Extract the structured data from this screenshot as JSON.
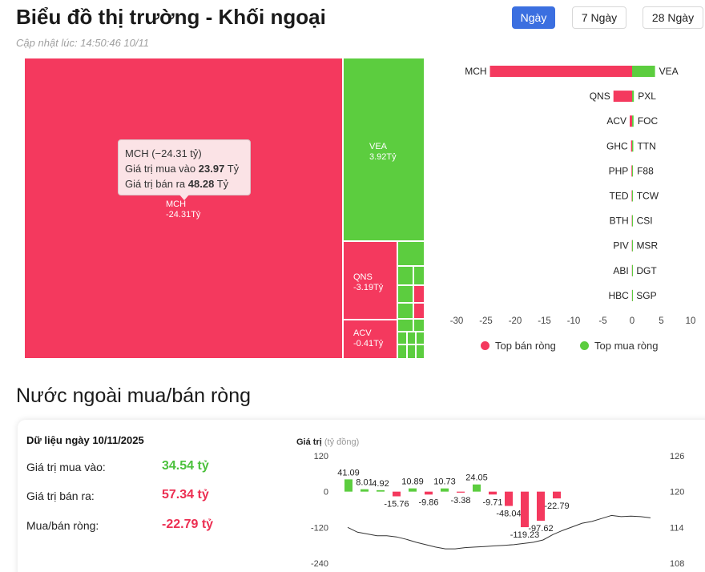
{
  "header": {
    "title": "Biểu đồ thị trường - Khối ngoại",
    "updated": "Cập nhật lúc: 14:50:46 10/11",
    "tabs": [
      {
        "label": "Ngày",
        "active": true
      },
      {
        "label": "7 Ngày",
        "active": false
      },
      {
        "label": "28 Ngày",
        "active": false
      }
    ]
  },
  "colors": {
    "sell": "#f4395e",
    "buy": "#5ccd3f",
    "accent": "#3b6fe0"
  },
  "tooltip": {
    "title": "MCH (−24.31 tỷ)",
    "buy_label": "Giá trị mua vào ",
    "buy_value": "23.97",
    "sell_label": "Giá trị bán ra ",
    "sell_value": "48.28",
    "unit": " Tỷ"
  },
  "chart_data": [
    {
      "type": "treemap",
      "tiles": [
        {
          "name": "MCH",
          "label": "-24.31Tỷ",
          "value": -24.31
        },
        {
          "name": "VEA",
          "label": "3.92Tỷ",
          "value": 3.92
        },
        {
          "name": "QNS",
          "label": "-3.19Tỷ",
          "value": -3.19
        },
        {
          "name": "ACV",
          "label": "-0.41Tỷ",
          "value": -0.41
        }
      ]
    },
    {
      "type": "bar",
      "orientation": "horizontal",
      "sell_categories": [
        "MCH",
        "QNS",
        "ACV",
        "GHC",
        "PHP",
        "TED",
        "BTH",
        "PIV",
        "ABI",
        "HBC"
      ],
      "buy_categories": [
        "VEA",
        "PXL",
        "FOC",
        "TTN",
        "F88",
        "TCW",
        "CSI",
        "MSR",
        "DGT",
        "SGP"
      ],
      "series": [
        {
          "name": "Top bán ròng",
          "values": [
            -24.31,
            -3.19,
            -0.41,
            -0.18,
            -0.1,
            -0.07,
            -0.05,
            -0.04,
            -0.03,
            -0.02
          ]
        },
        {
          "name": "Top mua ròng",
          "values": [
            3.92,
            0.3,
            0.25,
            0.2,
            0.15,
            0.1,
            0.08,
            0.06,
            0.05,
            0.04
          ]
        }
      ],
      "xlim": [
        -30,
        10
      ],
      "xticks": [
        -30,
        -25,
        -20,
        -15,
        -10,
        -5,
        0,
        5,
        10
      ],
      "legend": "bottom"
    },
    {
      "type": "bar",
      "ylabel_bold": "Giá trị",
      "ylabel_unit": "(tỷ đồng)",
      "values": [
        41.09,
        8.01,
        4.92,
        -15.76,
        10.89,
        -9.86,
        10.73,
        -3.38,
        24.05,
        -9.71,
        -48.04,
        -119.23,
        -97.62,
        -22.79
      ],
      "value_labels": [
        "41.09",
        "8.01",
        "4.92",
        "-15.76",
        "10.89",
        "-9.86",
        "10.73",
        "-3.38",
        "24.05",
        "-9.71",
        "-48.04",
        "-119.23",
        "-97.62",
        "-22.79"
      ],
      "ylim": [
        -240,
        120
      ],
      "yticks": [
        120,
        0,
        -120,
        -240
      ],
      "y2lim": [
        108,
        126
      ],
      "y2ticks": [
        126,
        120,
        114,
        108
      ],
      "line_values": [
        114.0,
        113.2,
        112.9,
        112.6,
        112.6,
        112.4,
        112.0,
        111.5,
        111.1,
        110.7,
        110.4,
        110.4,
        110.6,
        110.7,
        110.8,
        110.9,
        111.0,
        111.1,
        111.3,
        111.5,
        111.9,
        112.8,
        113.5,
        114.1,
        114.7,
        115.0,
        115.5,
        116.0,
        115.8,
        115.9,
        115.8,
        115.6
      ]
    }
  ],
  "net": {
    "section_title": "Nước ngoài mua/bán ròng",
    "date_label": "Dữ liệu ngày 10/11/2025",
    "buy_label": "Giá trị mua vào:",
    "buy_value": "34.54 tỷ",
    "sell_label": "Giá trị bán ra:",
    "sell_value": "57.34 tỷ",
    "net_label": "Mua/bán ròng:",
    "net_value": "-22.79 tỷ"
  }
}
